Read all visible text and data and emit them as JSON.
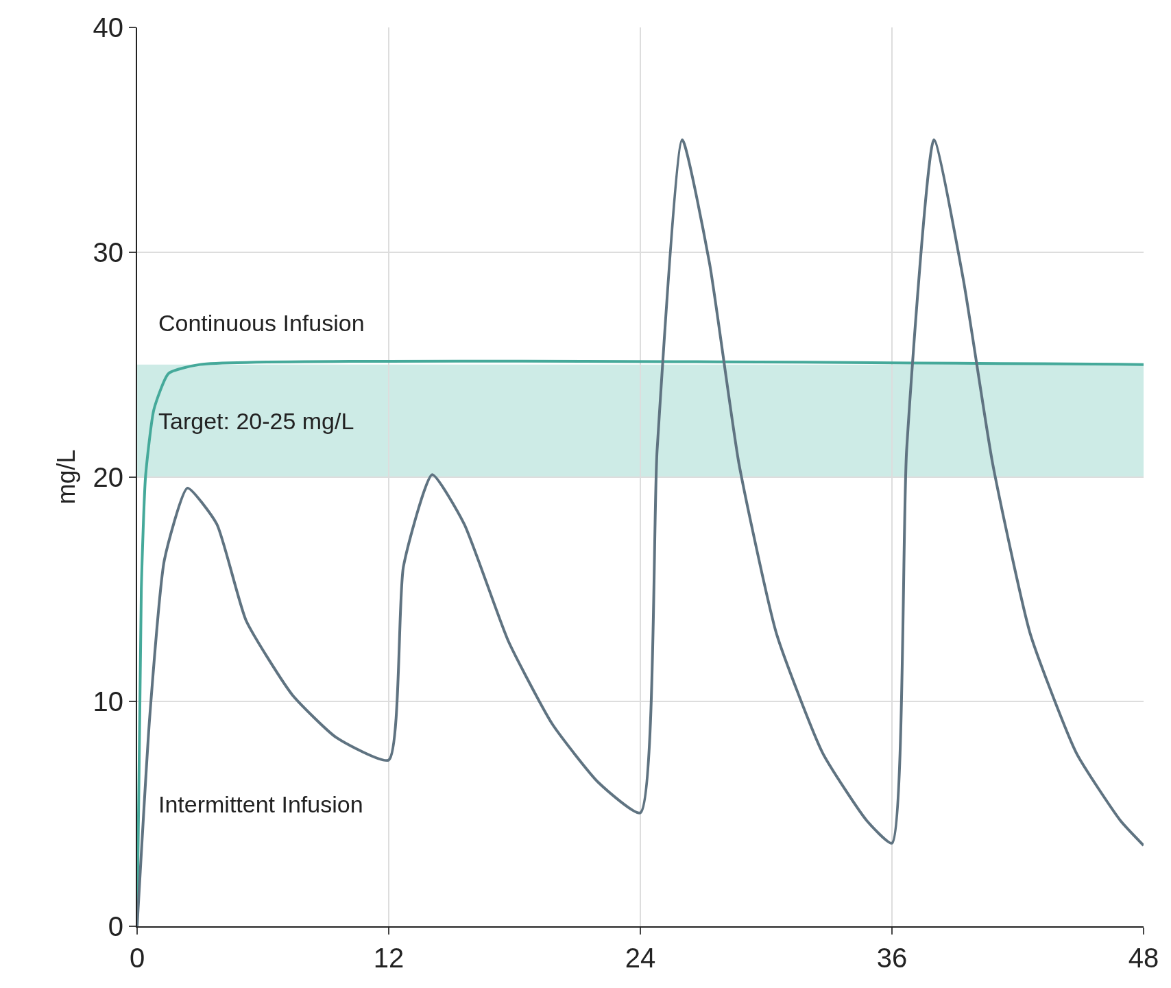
{
  "chart_data": {
    "type": "line",
    "ylabel": "mg/L",
    "xlim": [
      0,
      48
    ],
    "xticks": [
      0,
      12,
      24,
      36,
      48
    ],
    "ylim": [
      0,
      40
    ],
    "yticks": [
      0,
      10,
      20,
      30,
      40
    ],
    "grid": true,
    "legend": false,
    "marker": "none",
    "line_style": "solid",
    "bands": [
      {
        "axis": "y",
        "from": 20,
        "to": 25,
        "label": "Target: 20-25 mg/L",
        "color": "#cdebe6"
      }
    ],
    "series": [
      {
        "name": "Continuous Infusion",
        "color": "#45a99a",
        "x": [
          0,
          0.2,
          0.4,
          0.8,
          1.5,
          3,
          48
        ],
        "values": [
          0,
          15,
          20,
          23,
          24.6,
          25,
          25
        ]
      },
      {
        "name": "Intermittent Infusion",
        "color": "#5f7381",
        "x": [
          0,
          0.6,
          1.3,
          2.4,
          3.8,
          5.2,
          7.4,
          9.5,
          12,
          12.7,
          14.07,
          15.6,
          17.7,
          19.8,
          22,
          24,
          24.8,
          26,
          27.3,
          28.7,
          30.5,
          32.7,
          34.8,
          36,
          36.7,
          38,
          39.4,
          40.8,
          42.6,
          44.8,
          46.9,
          48
        ],
        "values": [
          0,
          9.3,
          16.3,
          19.5,
          17.9,
          13.6,
          10.3,
          8.4,
          7.4,
          16,
          20.1,
          17.9,
          12.7,
          9,
          6.4,
          5.05,
          21.2,
          35,
          29.5,
          20.6,
          13,
          7.7,
          4.7,
          3.7,
          21.2,
          35,
          28.8,
          20.6,
          13,
          7.7,
          4.7,
          3.6
        ]
      }
    ]
  }
}
